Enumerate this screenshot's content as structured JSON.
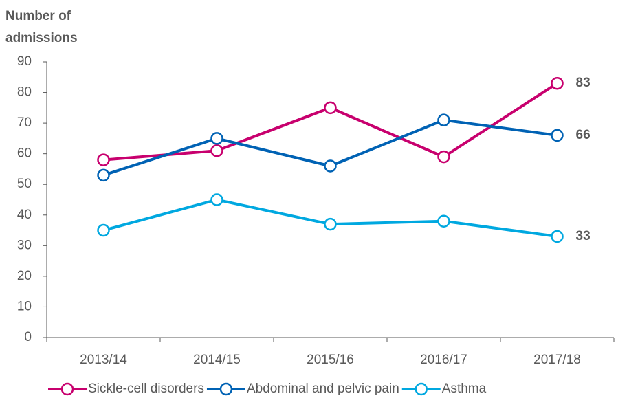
{
  "chart_data": {
    "type": "line",
    "y_label": [
      "Number of",
      "admissions"
    ],
    "categories": [
      "2013/14",
      "2014/15",
      "2015/16",
      "2016/17",
      "2017/18"
    ],
    "series": [
      {
        "name": "Sickle-cell disorders",
        "color": "#c8006e",
        "values": [
          58,
          61,
          75,
          59,
          83
        ]
      },
      {
        "name": "Abdominal and pelvic pain",
        "color": "#0062b4",
        "values": [
          53,
          65,
          56,
          71,
          66
        ]
      },
      {
        "name": "Asthma",
        "color": "#00a8e0",
        "values": [
          35,
          45,
          37,
          38,
          33
        ]
      }
    ],
    "ylim": [
      0,
      90
    ],
    "yticks": [
      0,
      10,
      20,
      30,
      40,
      50,
      60,
      70,
      80,
      90
    ],
    "grid": false,
    "legend": "bottom"
  }
}
